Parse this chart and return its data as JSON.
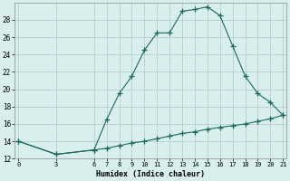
{
  "title": "",
  "xlabel": "Humidex (Indice chaleur)",
  "x_values": [
    0,
    3,
    6,
    7,
    8,
    9,
    10,
    11,
    12,
    13,
    14,
    15,
    16,
    17,
    18,
    19,
    20,
    21
  ],
  "y_main": [
    14,
    12.5,
    13,
    16.5,
    19.5,
    21.5,
    24.5,
    26.5,
    26.5,
    29,
    29.2,
    29.5,
    28.5,
    25,
    21.5,
    19.5,
    18.5,
    17
  ],
  "y_base": [
    14,
    12.5,
    13,
    13.2,
    13.5,
    13.8,
    14.0,
    14.3,
    14.6,
    14.9,
    15.1,
    15.4,
    15.6,
    15.8,
    16.0,
    16.3,
    16.6,
    17
  ],
  "line_color": "#1a6b5a",
  "bg_color": "#d8efee",
  "grid_color": "#aec8c8",
  "ylim": [
    12,
    30
  ],
  "yticks": [
    12,
    14,
    16,
    18,
    20,
    22,
    24,
    26,
    28
  ],
  "xticks": [
    0,
    3,
    6,
    7,
    8,
    9,
    10,
    11,
    12,
    13,
    14,
    15,
    16,
    17,
    18,
    19,
    20,
    21
  ],
  "marker": "+",
  "markersize": 4,
  "linewidth": 0.8
}
